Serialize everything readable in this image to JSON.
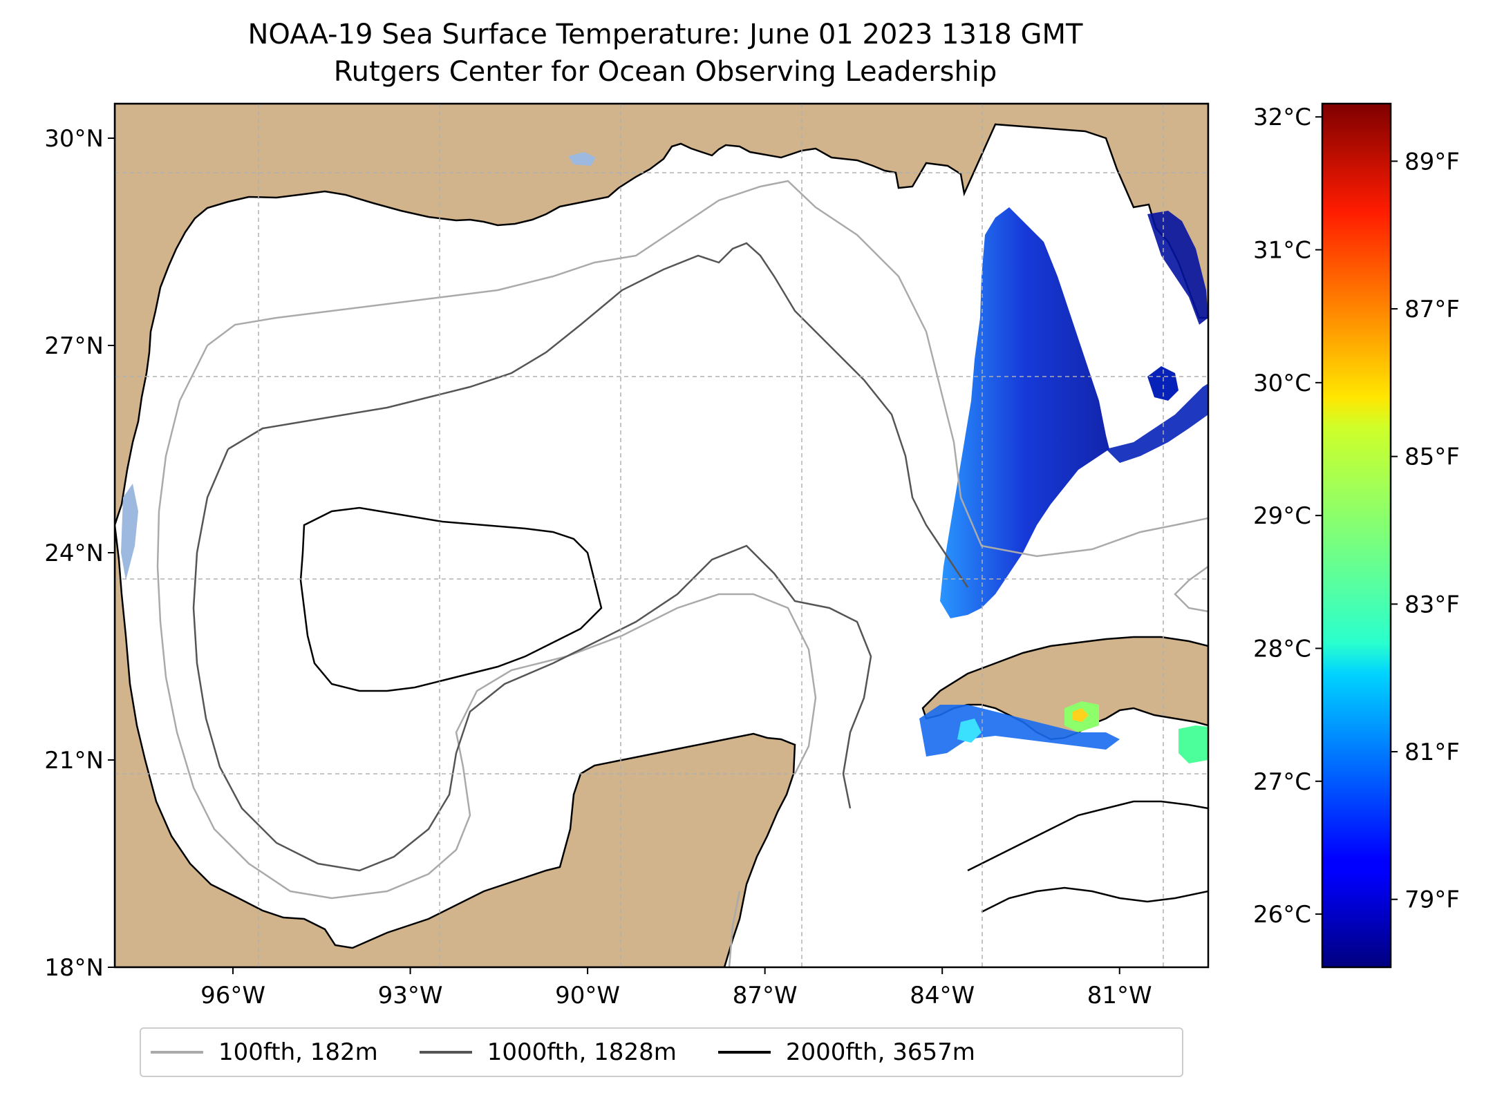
{
  "title": {
    "line1": "NOAA-19 Sea Surface Temperature: June 01 2023 1318 GMT",
    "line2": "Rutgers Center for Ocean Observing Leadership"
  },
  "map": {
    "lon_range": [
      -98.0,
      -79.5
    ],
    "lat_range": [
      18.0,
      30.5
    ],
    "lat_ticks": [
      {
        "value": 18,
        "label": "18°N"
      },
      {
        "value": 21,
        "label": "21°N"
      },
      {
        "value": 24,
        "label": "24°N"
      },
      {
        "value": 27,
        "label": "27°N"
      },
      {
        "value": 30,
        "label": "30°N"
      }
    ],
    "lon_ticks": [
      {
        "value": -96,
        "label": "96°W"
      },
      {
        "value": -93,
        "label": "93°W"
      },
      {
        "value": -90,
        "label": "90°W"
      },
      {
        "value": -87,
        "label": "87°W"
      },
      {
        "value": -84,
        "label": "84°W"
      },
      {
        "value": -81,
        "label": "81°W"
      }
    ],
    "gridlines": "dashed",
    "colors": {
      "land": "#d2b48c",
      "water_bodies": "#9db9e0",
      "ocean": "#ffffff",
      "grid": "#b0b0b0"
    }
  },
  "colorbar": {
    "colormap": "jet",
    "celsius_range": [
      25.6,
      32.1
    ],
    "celsius_ticks": [
      {
        "value": 26,
        "label": "26°C"
      },
      {
        "value": 27,
        "label": "27°C"
      },
      {
        "value": 28,
        "label": "28°C"
      },
      {
        "value": 29,
        "label": "29°C"
      },
      {
        "value": 30,
        "label": "30°C"
      },
      {
        "value": 31,
        "label": "31°C"
      },
      {
        "value": 32,
        "label": "32°C"
      }
    ],
    "fahrenheit_ticks": [
      {
        "value": 79,
        "label": "79°F"
      },
      {
        "value": 81,
        "label": "81°F"
      },
      {
        "value": 83,
        "label": "83°F"
      },
      {
        "value": 85,
        "label": "85°F"
      },
      {
        "value": 87,
        "label": "87°F"
      },
      {
        "value": 89,
        "label": "89°F"
      }
    ]
  },
  "legend": {
    "items": [
      {
        "label": "100fth, 182m",
        "color": "#aaaaaa"
      },
      {
        "label": "1000fth, 1828m",
        "color": "#555555"
      },
      {
        "label": "2000fth, 3657m",
        "color": "#000000"
      }
    ]
  }
}
